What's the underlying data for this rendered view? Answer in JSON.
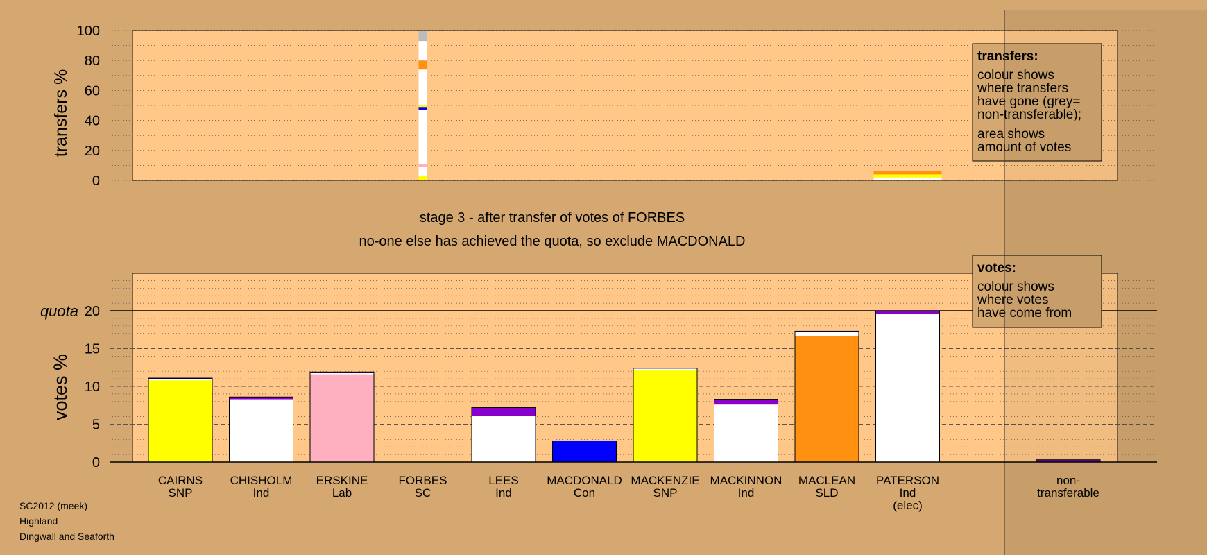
{
  "chart_data": {
    "type": "bar",
    "subtitle": "stage 3 - after transfer of votes of FORBES",
    "subtitle2": "no-one else has achieved the quota, so exclude MACDONALD",
    "colors": {
      "background": "#d4a870",
      "plot_background": "#ffc888",
      "yellow": "#ffff00",
      "white": "#ffffff",
      "pink": "#ffb0c0",
      "orange": "#ff9010",
      "blue": "#0000ff",
      "purple": "#8800cc",
      "grey": "#bbbbbb",
      "navy": "#000080"
    },
    "transfers_panel": {
      "ylabel": "transfers %",
      "ylim": [
        0,
        100
      ],
      "yticks": [
        "0",
        "20",
        "40",
        "60",
        "80",
        "100"
      ],
      "legend": {
        "title": "transfers:",
        "line1": "colour shows where transfers have gone (grey= non-transferable);",
        "line2": "area shows amount of votes"
      },
      "forbes_transfer_segments": [
        {
          "to": "CAIRNS",
          "color": "#ffff00",
          "from": 0,
          "to_value": 3
        },
        {
          "to": "CHISHOLM",
          "color": "#ffffff",
          "from": 3,
          "to_value": 9
        },
        {
          "to": "ERSKINE",
          "color": "#ffb0c0",
          "from": 9,
          "to_value": 11
        },
        {
          "to": "LEES",
          "color": "#ffffff",
          "from": 11,
          "to_value": 47
        },
        {
          "to": "MACDONALD",
          "color": "#0000ff",
          "from": 47,
          "to_value": 49
        },
        {
          "to": "MACKENZIE",
          "color": "#ffff00",
          "from": 49,
          "to_value": 50
        },
        {
          "to": "MACKINNON",
          "color": "#ffffff",
          "from": 50,
          "to_value": 74
        },
        {
          "to": "MACLEAN",
          "color": "#ff9010",
          "from": 74,
          "to_value": 80
        },
        {
          "to": "PATERSON",
          "color": "#ffffff",
          "from": 80,
          "to_value": 93
        },
        {
          "to": "non-transferable",
          "color": "#bbbbbb",
          "from": 93,
          "to_value": 100
        }
      ],
      "paterson_surplus_segments": [
        {
          "color": "#ffffff",
          "from": 0,
          "to_value": 2
        },
        {
          "color": "#ffff00",
          "from": 2,
          "to_value": 4
        },
        {
          "color": "#ff9010",
          "from": 4,
          "to_value": 6
        }
      ]
    },
    "votes_panel": {
      "ylabel": "votes %",
      "quota_label": "quota",
      "quota": 20,
      "ylim": [
        0,
        25
      ],
      "yticks": [
        "0",
        "5",
        "10",
        "15",
        "20"
      ],
      "legend": {
        "title": "votes:",
        "line1": "colour shows where votes have come from"
      }
    },
    "candidates": [
      {
        "name": "CAIRNS",
        "party": "SNP",
        "extra": "",
        "segments": [
          {
            "value": 10.8,
            "color": "#ffff00"
          },
          {
            "value": 0.2,
            "color": "#ffffff"
          },
          {
            "value": 0.1,
            "color": "#000080"
          }
        ]
      },
      {
        "name": "CHISHOLM",
        "party": "Ind",
        "extra": "",
        "segments": [
          {
            "value": 8.3,
            "color": "#ffffff"
          },
          {
            "value": 0.3,
            "color": "#8800cc"
          }
        ]
      },
      {
        "name": "ERSKINE",
        "party": "Lab",
        "extra": "",
        "segments": [
          {
            "value": 11.6,
            "color": "#ffb0c0"
          },
          {
            "value": 0.2,
            "color": "#ffffff"
          },
          {
            "value": 0.1,
            "color": "#8800cc"
          }
        ]
      },
      {
        "name": "FORBES",
        "party": "SC",
        "extra": "",
        "segments": []
      },
      {
        "name": "LEES",
        "party": "Ind",
        "extra": "",
        "segments": [
          {
            "value": 6.1,
            "color": "#ffffff"
          },
          {
            "value": 1.1,
            "color": "#8800cc"
          }
        ]
      },
      {
        "name": "MACDONALD",
        "party": "Con",
        "extra": "",
        "segments": [
          {
            "value": 2.8,
            "color": "#0000ff"
          }
        ]
      },
      {
        "name": "MACKENZIE",
        "party": "SNP",
        "extra": "",
        "segments": [
          {
            "value": 12.1,
            "color": "#ffff00"
          },
          {
            "value": 0.3,
            "color": "#ffffff"
          }
        ]
      },
      {
        "name": "MACKINNON",
        "party": "Ind",
        "extra": "",
        "segments": [
          {
            "value": 7.6,
            "color": "#ffffff"
          },
          {
            "value": 0.7,
            "color": "#8800cc"
          }
        ]
      },
      {
        "name": "MACLEAN",
        "party": "SLD",
        "extra": "",
        "segments": [
          {
            "value": 16.7,
            "color": "#ff9010"
          },
          {
            "value": 0.5,
            "color": "#ffffff"
          },
          {
            "value": 0.1,
            "color": "#8800cc"
          }
        ]
      },
      {
        "name": "PATERSON",
        "party": "Ind",
        "extra": "(elec)",
        "segments": [
          {
            "value": 19.6,
            "color": "#ffffff"
          },
          {
            "value": 0.4,
            "color": "#8800cc"
          }
        ]
      }
    ],
    "non_transferable": {
      "line1": "non-",
      "line2": "transferable",
      "segments": [
        {
          "value": 0.3,
          "color": "#8800cc"
        }
      ]
    }
  },
  "footer": {
    "line1": "SC2012 (meek)",
    "line2": "Highland",
    "line3": "Dingwall and Seaforth"
  }
}
